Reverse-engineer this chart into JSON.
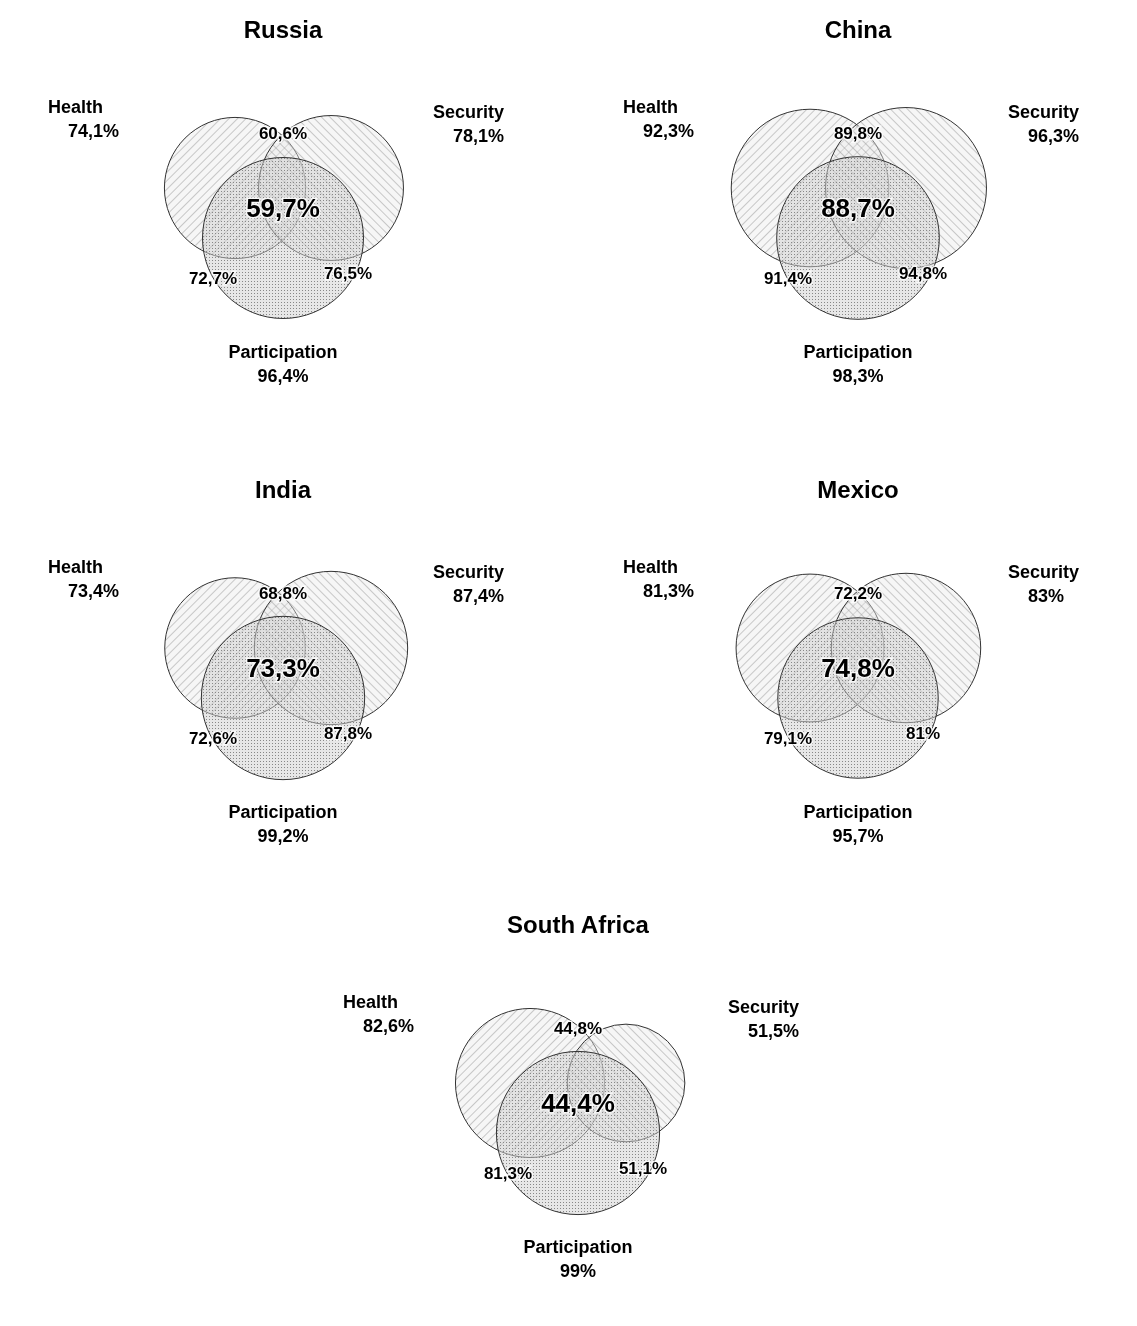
{
  "chart_data": [
    {
      "type": "other",
      "title": "Russia",
      "categories": [
        "Health",
        "Security",
        "Participation"
      ],
      "values": [
        74.1,
        78.1,
        96.4
      ],
      "value_labels": [
        "74,1%",
        "78,1%",
        "96,4%"
      ],
      "annotations": [
        "60,6%",
        "72,7%",
        "76,5%",
        "59,7%"
      ]
    },
    {
      "type": "other",
      "title": "China",
      "categories": [
        "Health",
        "Security",
        "Participation"
      ],
      "values": [
        92.3,
        96.3,
        98.3
      ],
      "value_labels": [
        "92,3%",
        "96,3%",
        "98,3%"
      ],
      "annotations": [
        "89,8%",
        "91,4%",
        "94,8%",
        "88,7%"
      ]
    },
    {
      "type": "other",
      "title": "India",
      "categories": [
        "Health",
        "Security",
        "Participation"
      ],
      "values": [
        73.4,
        87.4,
        99.2
      ],
      "value_labels": [
        "73,4%",
        "87,4%",
        "99,2%"
      ],
      "annotations": [
        "68,8%",
        "72,6%",
        "87,8%",
        "73,3%"
      ]
    },
    {
      "type": "other",
      "title": "Mexico",
      "categories": [
        "Health",
        "Security",
        "Participation"
      ],
      "values": [
        81.3,
        83,
        95.7
      ],
      "value_labels": [
        "81,3%",
        "83%",
        "95,7%"
      ],
      "annotations": [
        "72,2%",
        "79,1%",
        "81%",
        "74,8%"
      ]
    },
    {
      "type": "other",
      "title": "South Africa",
      "categories": [
        "Health",
        "Security",
        "Participation"
      ],
      "values": [
        82.6,
        51.5,
        99
      ],
      "value_labels": [
        "82,6%",
        "51,5%",
        "99%"
      ],
      "annotations": [
        "44,8%",
        "81,3%",
        "51,1%",
        "44,4%"
      ]
    }
  ]
}
